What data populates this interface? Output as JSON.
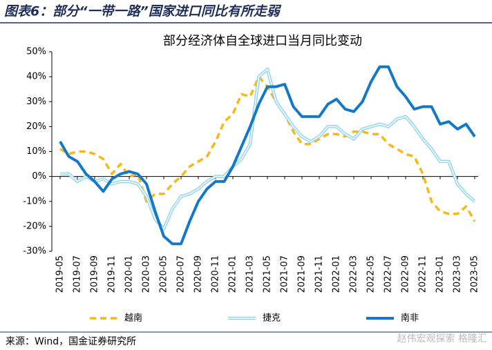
{
  "chart_data": {
    "type": "line",
    "title": "图表6：部分“一带一路”国家进口同比有所走弱",
    "subtitle": "部分经济体自全球进口当月同比变动",
    "source": "来源：Wind，国金证券研究所",
    "watermark": "赵伟宏观探索 格隆汇",
    "categories": [
      "2019-05",
      null,
      "2019-07",
      null,
      "2019-09",
      null,
      "2019-11",
      null,
      "2020-01",
      null,
      "2020-03",
      null,
      "2020-05",
      null,
      "2020-07",
      null,
      "2020-09",
      null,
      "2020-11",
      null,
      "2021-01",
      null,
      "2021-03",
      null,
      "2021-05",
      null,
      "2021-07",
      null,
      "2021-09",
      null,
      "2021-11",
      null,
      "2022-01",
      null,
      "2022-03",
      null,
      "2022-05",
      null,
      "2022-07",
      null,
      "2022-09",
      null,
      "2022-11",
      null,
      "2023-01",
      null,
      "2023-03",
      null,
      "2023-05"
    ],
    "series": [
      {
        "name": "越南",
        "color": "#f5b817",
        "style": "dashed",
        "values": [
          11,
          9,
          10,
          10,
          9,
          7,
          1,
          5,
          0,
          1,
          -10,
          -7,
          -7,
          -3,
          0,
          4,
          6,
          8,
          14,
          22,
          25,
          33,
          32,
          40,
          36,
          30,
          25,
          18,
          13,
          13,
          15,
          17,
          17,
          16,
          18,
          18,
          17,
          17,
          13,
          11,
          9,
          8,
          1,
          -10,
          -14,
          -15,
          -15,
          -12,
          -18
        ]
      },
      {
        "name": "捷克",
        "color": "#8fd3ee",
        "style": "double",
        "values": [
          1,
          1,
          -2,
          0,
          -2,
          -1,
          -3,
          -2,
          -2,
          -3,
          -8,
          -17,
          -21,
          -13,
          -8,
          -7,
          -5,
          -2,
          0,
          0,
          4,
          7,
          13,
          40,
          43,
          30,
          25,
          20,
          16,
          14,
          16,
          20,
          20,
          17,
          15,
          19,
          20,
          21,
          20,
          23,
          24,
          20,
          15,
          11,
          6,
          6,
          -3,
          -7,
          -10
        ]
      },
      {
        "name": "南非",
        "color": "#1478c8",
        "style": "solid",
        "values": [
          14,
          8,
          6,
          1,
          -2,
          -6,
          -1,
          1,
          2,
          1,
          -3,
          -14,
          -24,
          -27,
          -27,
          -18,
          -10,
          -5,
          -2,
          -2,
          4,
          12,
          20,
          29,
          36,
          36,
          37,
          28,
          24,
          24,
          24,
          29,
          31,
          27,
          26,
          30,
          38,
          44,
          44,
          36,
          32,
          27,
          28,
          28,
          21,
          22,
          19,
          21,
          16
        ]
      }
    ],
    "ylim": [
      -30,
      50
    ],
    "yticks": [
      {
        "value": -30,
        "label": "-30%"
      },
      {
        "value": -20,
        "label": "-20%"
      },
      {
        "value": -10,
        "label": "-10%"
      },
      {
        "value": 0,
        "label": "0%"
      },
      {
        "value": 10,
        "label": "10%"
      },
      {
        "value": 20,
        "label": "20%"
      },
      {
        "value": 30,
        "label": "30%"
      },
      {
        "value": 40,
        "label": "40%"
      },
      {
        "value": 50,
        "label": "50%"
      }
    ],
    "grid": false,
    "legend": "bottom"
  }
}
